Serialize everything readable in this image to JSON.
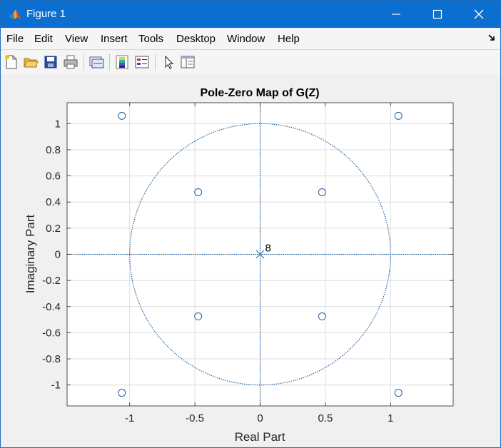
{
  "window": {
    "title": "Figure 1"
  },
  "menu": {
    "items": [
      "File",
      "Edit",
      "View",
      "Insert",
      "Tools",
      "Desktop",
      "Window",
      "Help"
    ]
  },
  "toolbar": {
    "icons": [
      "new-figure-icon",
      "open-file-icon",
      "save-icon",
      "print-icon",
      "link-plot-icon",
      "colorbar-icon",
      "legend-icon",
      "pointer-icon",
      "property-inspector-icon"
    ]
  },
  "chart_data": {
    "type": "scatter",
    "title": "Pole-Zero Map of G(Z)",
    "xlabel": "Real Part",
    "ylabel": "Imaginary Part",
    "xlim": [
      -1.48,
      1.48
    ],
    "ylim": [
      -1.16,
      1.16
    ],
    "xticks": [
      -1,
      -0.5,
      0,
      0.5,
      1
    ],
    "xtick_labels": [
      "-1",
      "-0.5",
      "0",
      "0.5",
      "1"
    ],
    "yticks": [
      1,
      0.8,
      0.6,
      0.4,
      0.2,
      0,
      -0.2,
      -0.4,
      -0.6,
      -0.8,
      -1
    ],
    "ytick_labels": [
      "1",
      "0.8",
      "0.6",
      "0.4",
      "0.2",
      "0",
      "-0.2",
      "-0.4",
      "-0.6",
      "-0.8",
      "-1"
    ],
    "grid": true,
    "unit_circle": true,
    "zeros": [
      {
        "x": -1.06,
        "y": 1.06
      },
      {
        "x": 1.06,
        "y": 1.06
      },
      {
        "x": -0.475,
        "y": 0.475
      },
      {
        "x": 0.475,
        "y": 0.475
      },
      {
        "x": -0.475,
        "y": -0.475
      },
      {
        "x": 0.475,
        "y": -0.475
      },
      {
        "x": -1.06,
        "y": -1.06
      },
      {
        "x": 1.06,
        "y": -1.06
      }
    ],
    "poles": [
      {
        "x": 0,
        "y": 0,
        "multiplicity_label": "8"
      }
    ],
    "colors": {
      "marker": "#1f5fa0",
      "grid": "#dcdcdc",
      "reference": "#1f5fa0"
    }
  }
}
